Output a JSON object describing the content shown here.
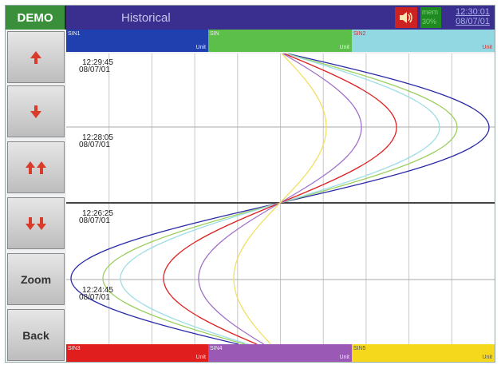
{
  "header": {
    "demo_label": "DEMO",
    "title": "Historical",
    "mem_label": "mem",
    "mem_percent": "30%",
    "time": "12:30:01",
    "date": "08/07/01",
    "speaker_icon": "speaker-icon"
  },
  "sidebar": {
    "buttons": [
      {
        "name": "scroll-up-button",
        "label": "",
        "icon": "arrow-up-icon"
      },
      {
        "name": "scroll-down-button",
        "label": "",
        "icon": "arrow-down-icon"
      },
      {
        "name": "page-up-button",
        "label": "",
        "icon": "double-arrow-up-icon"
      },
      {
        "name": "page-down-button",
        "label": "",
        "icon": "double-arrow-down-icon"
      },
      {
        "name": "zoom-button",
        "label": "Zoom"
      },
      {
        "name": "back-button",
        "label": "Back"
      }
    ]
  },
  "top_traces": [
    {
      "name": "SIN1",
      "unit": "Unit",
      "color": "#1f3fb0"
    },
    {
      "name": "SIN",
      "unit": "Unit",
      "color": "#4fc04f"
    },
    {
      "name": "SIN2",
      "unit": "Unit",
      "color": "#8fd6e0"
    }
  ],
  "bottom_traces": [
    {
      "name": "SIN3",
      "unit": "Unit",
      "color": "#e02020"
    },
    {
      "name": "SIN4",
      "unit": "Unit",
      "color": "#a060c0"
    },
    {
      "name": "SIN5",
      "unit": "Unit",
      "color": "#f0e020"
    }
  ],
  "timestamps": [
    {
      "time": "12:29:45",
      "date": "08/07/01"
    },
    {
      "time": "12:28:05",
      "date": "08/07/01"
    },
    {
      "time": "12:26:25",
      "date": "08/07/01"
    },
    {
      "time": "12:24:45",
      "date": "08/07/01"
    }
  ],
  "chart_data": {
    "type": "line",
    "orientation": "vertical-time",
    "grid": true,
    "series": [
      {
        "color": "#2a2aa8"
      },
      {
        "color": "#9ccf60"
      },
      {
        "color": "#9fdde6"
      },
      {
        "color": "#e02020"
      },
      {
        "color": "#a070c8"
      },
      {
        "color": "#f0e060"
      }
    ]
  }
}
